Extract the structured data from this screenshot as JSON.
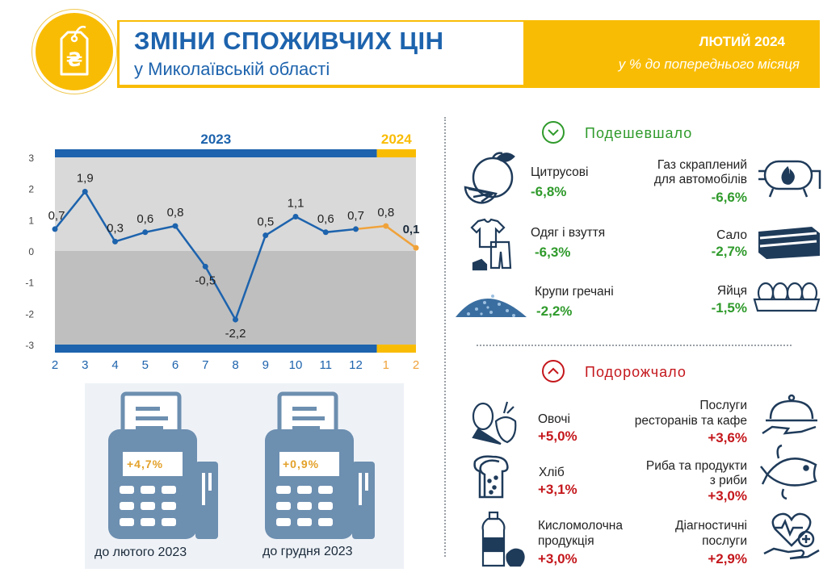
{
  "header": {
    "title": "ЗМІНИ СПОЖИВЧИХ ЦІН",
    "subtitle": "у Миколаївській області",
    "period": "ЛЮТИЙ 2024",
    "unit": "у % до попереднього місяця",
    "currency_symbol": "₴"
  },
  "colors": {
    "blue": "#1d63ad",
    "gold": "#f9bc05",
    "orange": "#f0a23a",
    "green": "#2f9a2b",
    "red": "#c4171c",
    "icon": "#1f3b5a"
  },
  "chart_data": {
    "type": "line",
    "x": [
      "2",
      "3",
      "4",
      "5",
      "6",
      "7",
      "8",
      "9",
      "10",
      "11",
      "12",
      "1",
      "2"
    ],
    "year_labels": [
      "2023",
      "2024"
    ],
    "series": [
      {
        "values": [
          0.7,
          1.9,
          0.3,
          0.6,
          0.8,
          -0.5,
          -2.2,
          0.5,
          1.1,
          0.6,
          0.7,
          null,
          null
        ]
      },
      {
        "values": [
          null,
          null,
          null,
          null,
          null,
          null,
          null,
          null,
          null,
          null,
          0.7,
          0.8,
          0.1
        ]
      }
    ],
    "data_labels": [
      "0,7",
      "1,9",
      "0,3",
      "0,6",
      "0,8",
      "-0,5",
      "-2,2",
      "0,5",
      "1,1",
      "0,6",
      "0,7",
      "0,8",
      "0,1"
    ],
    "y_ticks": [
      "3",
      "2",
      "1",
      "0",
      "-1",
      "-2",
      "-3"
    ],
    "ylim": [
      -3,
      3
    ]
  },
  "cheaper": {
    "title": "Подешевшало",
    "items": [
      {
        "name": "Цитрусові",
        "value": "-6,8%",
        "icon": "citrus-icon"
      },
      {
        "name": "Газ скраплений для автомобілів",
        "name_l1": "Газ скраплений",
        "name_l2": "для автомобілів",
        "value": "-6,6%",
        "icon": "gas-tank-icon"
      },
      {
        "name": "Одяг і взуття",
        "value": "-6,3%",
        "icon": "clothes-icon"
      },
      {
        "name": "Сало",
        "value": "-2,7%",
        "icon": "lard-icon"
      },
      {
        "name": "Крупи гречані",
        "value": "-2,2%",
        "icon": "buckwheat-icon"
      },
      {
        "name": "Яйця",
        "value": "-1,5%",
        "icon": "eggs-icon"
      }
    ]
  },
  "pricier": {
    "title": "Подорожчало",
    "items": [
      {
        "name": "Овочі",
        "value": "+5,0%",
        "icon": "vegetables-icon"
      },
      {
        "name_l1": "Послуги",
        "name_l2": "ресторанів та кафе",
        "value": "+3,6%",
        "icon": "cloche-icon"
      },
      {
        "name": "Хліб",
        "value": "+3,1%",
        "icon": "bread-icon"
      },
      {
        "name_l1": "Риба та продукти",
        "name_l2": "з риби",
        "value": "+3,0%",
        "icon": "fish-icon"
      },
      {
        "name_l1": "Кисломолочна",
        "name_l2": "продукція",
        "value": "+3,0%",
        "icon": "dairy-icon"
      },
      {
        "name_l1": "Діагностичні",
        "name_l2": "послуги",
        "value": "+2,9%",
        "icon": "health-icon"
      }
    ]
  },
  "receipts": [
    {
      "value": "+4,7%",
      "label": "до лютого 2023"
    },
    {
      "value": "+0,9%",
      "label": "до грудня 2023"
    }
  ]
}
